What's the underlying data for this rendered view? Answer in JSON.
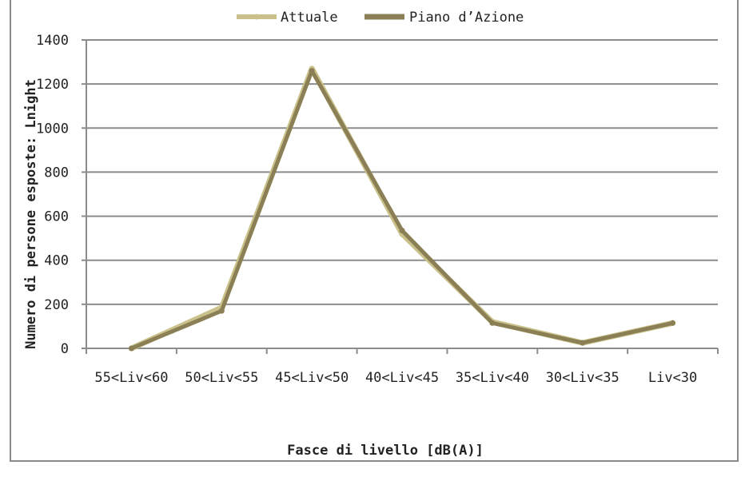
{
  "chart_data": {
    "type": "line",
    "categories": [
      "55<Liv<60",
      "50<Liv<55",
      "45<Liv<50",
      "40<Liv<45",
      "35<Liv<40",
      "30<Liv<35",
      "Liv<30"
    ],
    "series": [
      {
        "name": "Attuale",
        "values": [
          0,
          185,
          1270,
          520,
          120,
          25,
          115
        ],
        "color": "#c9c08a"
      },
      {
        "name": "Piano d’Azione",
        "values": [
          0,
          170,
          1260,
          535,
          115,
          25,
          115
        ],
        "color": "#8b8055"
      }
    ],
    "title": "",
    "xlabel": "Fasce di livello [dB(A)]",
    "ylabel": "Numero di persone esposte: Lnight",
    "ylim": [
      0,
      1400
    ],
    "yticks": [
      0,
      200,
      400,
      600,
      800,
      1000,
      1200,
      1400
    ],
    "grid": true,
    "legend_position": "top"
  }
}
